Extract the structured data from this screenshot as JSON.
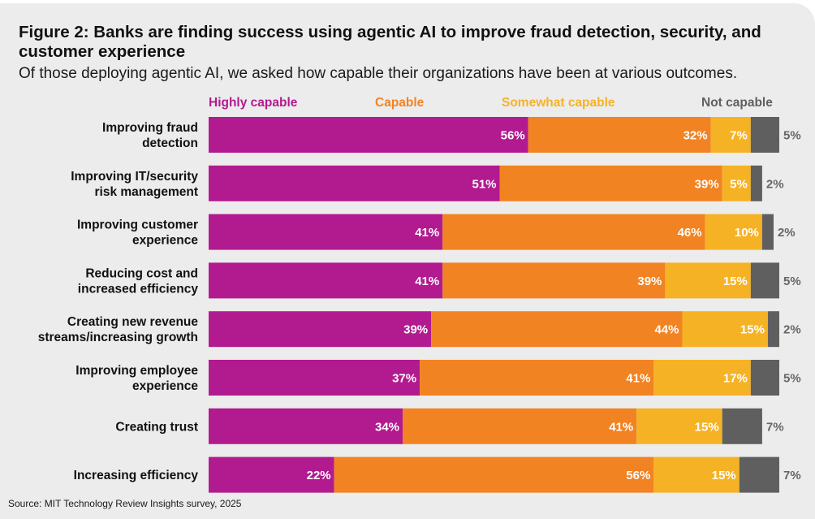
{
  "header": {
    "title": "Figure 2: Banks are finding success using agentic AI to improve fraud detection, security, and customer experience",
    "subtitle": "Of those deploying agentic AI, we asked how capable their organizations have been at various outcomes."
  },
  "source": "Source: MIT Technology Review Insights survey, 2025",
  "legend": [
    {
      "label": "Highly capable",
      "color": "#b21a8f"
    },
    {
      "label": "Capable",
      "color": "#f28322"
    },
    {
      "label": "Somewhat capable",
      "color": "#f6b225"
    },
    {
      "label": "Not capable",
      "color": "#5f5f60"
    }
  ],
  "chart_data": {
    "type": "bar",
    "orientation": "horizontal",
    "stacked": true,
    "unit": "%",
    "categories": [
      [
        "Improving fraud",
        "detection"
      ],
      [
        "Improving IT/security",
        "risk management"
      ],
      [
        "Improving customer",
        "experience"
      ],
      [
        "Reducing cost and",
        "increased efficiency"
      ],
      [
        "Creating new revenue",
        "streams/increasing growth"
      ],
      [
        "Improving employee",
        "experience"
      ],
      [
        "Creating trust"
      ],
      [
        "Increasing efficiency"
      ]
    ],
    "series": [
      {
        "name": "Highly capable",
        "color": "#b21a8f",
        "values": [
          56,
          51,
          41,
          41,
          39,
          37,
          34,
          22
        ]
      },
      {
        "name": "Capable",
        "color": "#f28322",
        "values": [
          32,
          39,
          46,
          39,
          44,
          41,
          41,
          56
        ]
      },
      {
        "name": "Somewhat capable",
        "color": "#f6b225",
        "values": [
          7,
          5,
          10,
          15,
          15,
          17,
          15,
          15
        ]
      },
      {
        "name": "Not capable",
        "color": "#5f5f60",
        "values": [
          5,
          2,
          2,
          5,
          2,
          5,
          7,
          7
        ]
      }
    ],
    "xlim": [
      0,
      100
    ],
    "legend_position": "top"
  }
}
